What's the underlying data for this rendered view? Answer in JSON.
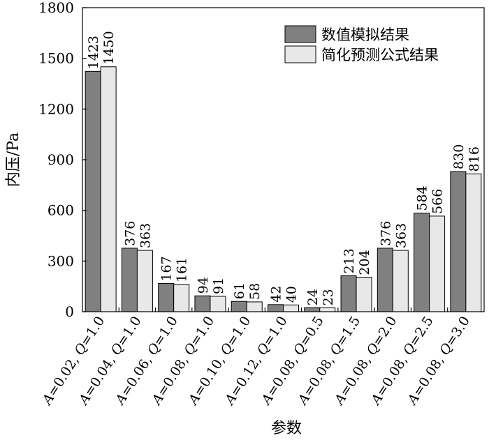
{
  "chart_data": {
    "type": "bar",
    "title": "",
    "xlabel": "参数",
    "ylabel": "内压/Pa",
    "ylim": [
      0,
      1800
    ],
    "yticks": [
      0,
      300,
      600,
      900,
      1200,
      1500,
      1800
    ],
    "grid": false,
    "legend_position": "top-right",
    "categories": [
      "A=0.02, Q=1.0",
      "A=0.04, Q=1.0",
      "A=0.06, Q=1.0",
      "A=0.08, Q=1.0",
      "A=0.10, Q=1.0",
      "A=0.12, Q=1.0",
      "A=0.08, Q=0.5",
      "A=0.08, Q=1.5",
      "A=0.08, Q=2.0",
      "A=0.08, Q=2.5",
      "A=0.08, Q=3.0"
    ],
    "series": [
      {
        "name": "数值模拟结果",
        "color": "#808080",
        "values": [
          1423,
          376,
          167,
          94,
          61,
          42,
          24,
          213,
          376,
          584,
          830
        ]
      },
      {
        "name": "简化预测公式结果",
        "color": "#e8e8e8",
        "values": [
          1450,
          363,
          161,
          91,
          58,
          40,
          23,
          204,
          363,
          566,
          816
        ]
      }
    ]
  }
}
